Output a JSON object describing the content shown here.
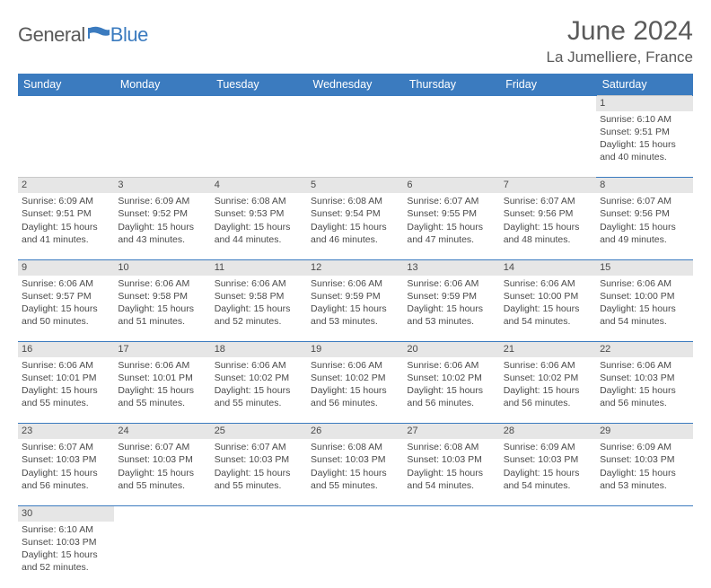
{
  "logo": {
    "part1": "General",
    "part2": "Blue"
  },
  "title": "June 2024",
  "location": "La Jumelliere, France",
  "colors": {
    "header_bg": "#3b7bbf",
    "header_fg": "#ffffff",
    "daynum_bg": "#e6e6e6",
    "row_border": "#3b7bbf",
    "text": "#4a4a4a",
    "logo_blue": "#3b7bbf"
  },
  "day_headers": [
    "Sunday",
    "Monday",
    "Tuesday",
    "Wednesday",
    "Thursday",
    "Friday",
    "Saturday"
  ],
  "weeks": [
    [
      null,
      null,
      null,
      null,
      null,
      null,
      {
        "n": "1",
        "sr": "6:10 AM",
        "ss": "9:51 PM",
        "dl": "15 hours and 40 minutes."
      }
    ],
    [
      {
        "n": "2",
        "sr": "6:09 AM",
        "ss": "9:51 PM",
        "dl": "15 hours and 41 minutes."
      },
      {
        "n": "3",
        "sr": "6:09 AM",
        "ss": "9:52 PM",
        "dl": "15 hours and 43 minutes."
      },
      {
        "n": "4",
        "sr": "6:08 AM",
        "ss": "9:53 PM",
        "dl": "15 hours and 44 minutes."
      },
      {
        "n": "5",
        "sr": "6:08 AM",
        "ss": "9:54 PM",
        "dl": "15 hours and 46 minutes."
      },
      {
        "n": "6",
        "sr": "6:07 AM",
        "ss": "9:55 PM",
        "dl": "15 hours and 47 minutes."
      },
      {
        "n": "7",
        "sr": "6:07 AM",
        "ss": "9:56 PM",
        "dl": "15 hours and 48 minutes."
      },
      {
        "n": "8",
        "sr": "6:07 AM",
        "ss": "9:56 PM",
        "dl": "15 hours and 49 minutes."
      }
    ],
    [
      {
        "n": "9",
        "sr": "6:06 AM",
        "ss": "9:57 PM",
        "dl": "15 hours and 50 minutes."
      },
      {
        "n": "10",
        "sr": "6:06 AM",
        "ss": "9:58 PM",
        "dl": "15 hours and 51 minutes."
      },
      {
        "n": "11",
        "sr": "6:06 AM",
        "ss": "9:58 PM",
        "dl": "15 hours and 52 minutes."
      },
      {
        "n": "12",
        "sr": "6:06 AM",
        "ss": "9:59 PM",
        "dl": "15 hours and 53 minutes."
      },
      {
        "n": "13",
        "sr": "6:06 AM",
        "ss": "9:59 PM",
        "dl": "15 hours and 53 minutes."
      },
      {
        "n": "14",
        "sr": "6:06 AM",
        "ss": "10:00 PM",
        "dl": "15 hours and 54 minutes."
      },
      {
        "n": "15",
        "sr": "6:06 AM",
        "ss": "10:00 PM",
        "dl": "15 hours and 54 minutes."
      }
    ],
    [
      {
        "n": "16",
        "sr": "6:06 AM",
        "ss": "10:01 PM",
        "dl": "15 hours and 55 minutes."
      },
      {
        "n": "17",
        "sr": "6:06 AM",
        "ss": "10:01 PM",
        "dl": "15 hours and 55 minutes."
      },
      {
        "n": "18",
        "sr": "6:06 AM",
        "ss": "10:02 PM",
        "dl": "15 hours and 55 minutes."
      },
      {
        "n": "19",
        "sr": "6:06 AM",
        "ss": "10:02 PM",
        "dl": "15 hours and 56 minutes."
      },
      {
        "n": "20",
        "sr": "6:06 AM",
        "ss": "10:02 PM",
        "dl": "15 hours and 56 minutes."
      },
      {
        "n": "21",
        "sr": "6:06 AM",
        "ss": "10:02 PM",
        "dl": "15 hours and 56 minutes."
      },
      {
        "n": "22",
        "sr": "6:06 AM",
        "ss": "10:03 PM",
        "dl": "15 hours and 56 minutes."
      }
    ],
    [
      {
        "n": "23",
        "sr": "6:07 AM",
        "ss": "10:03 PM",
        "dl": "15 hours and 56 minutes."
      },
      {
        "n": "24",
        "sr": "6:07 AM",
        "ss": "10:03 PM",
        "dl": "15 hours and 55 minutes."
      },
      {
        "n": "25",
        "sr": "6:07 AM",
        "ss": "10:03 PM",
        "dl": "15 hours and 55 minutes."
      },
      {
        "n": "26",
        "sr": "6:08 AM",
        "ss": "10:03 PM",
        "dl": "15 hours and 55 minutes."
      },
      {
        "n": "27",
        "sr": "6:08 AM",
        "ss": "10:03 PM",
        "dl": "15 hours and 54 minutes."
      },
      {
        "n": "28",
        "sr": "6:09 AM",
        "ss": "10:03 PM",
        "dl": "15 hours and 54 minutes."
      },
      {
        "n": "29",
        "sr": "6:09 AM",
        "ss": "10:03 PM",
        "dl": "15 hours and 53 minutes."
      }
    ],
    [
      {
        "n": "30",
        "sr": "6:10 AM",
        "ss": "10:03 PM",
        "dl": "15 hours and 52 minutes."
      },
      null,
      null,
      null,
      null,
      null,
      null
    ]
  ],
  "labels": {
    "sunrise": "Sunrise:",
    "sunset": "Sunset:",
    "daylight": "Daylight:"
  }
}
